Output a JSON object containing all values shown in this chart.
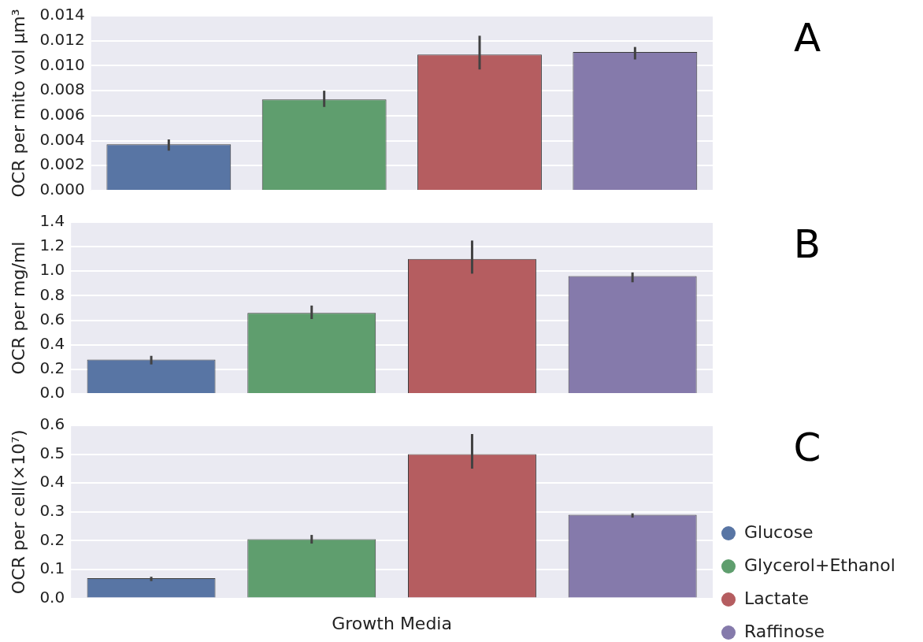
{
  "chart_data": [
    {
      "type": "bar",
      "ylabel": "OCR per mito vol μm³",
      "categories": [
        null,
        null,
        null,
        null
      ],
      "ylim": [
        0,
        0.014
      ],
      "yticks": [
        {
          "value": 0,
          "label": "0.000"
        },
        0.002,
        0.004,
        0.006,
        0.008,
        {
          "value": 0.01,
          "label": "0.010"
        },
        0.012,
        0.014
      ],
      "grid": "y",
      "legend": false,
      "annotations": [
        "A"
      ],
      "series": [
        {
          "color": "#5875a4",
          "values": [
            0.0037,
            null,
            null,
            null
          ],
          "errors": [
            [
              0.0032,
              0.0041
            ],
            null,
            null,
            null
          ]
        },
        {
          "color": "#5f9e6e",
          "values": [
            null,
            0.0073,
            null,
            null
          ],
          "errors": [
            null,
            [
              0.0067,
              0.008
            ],
            null,
            null
          ]
        },
        {
          "color": "#b55d60",
          "values": [
            null,
            null,
            0.0109,
            null
          ],
          "errors": [
            null,
            null,
            [
              0.0097,
              0.0124
            ],
            null
          ]
        },
        {
          "color": "#857aab",
          "values": [
            null,
            null,
            null,
            0.0111
          ],
          "errors": [
            null,
            null,
            null,
            [
              0.0105,
              0.0115
            ]
          ]
        }
      ]
    },
    {
      "type": "bar",
      "ylabel": "OCR per mg/ml",
      "categories": [
        null,
        null,
        null,
        null
      ],
      "ylim": [
        0,
        1.4
      ],
      "yticks": [
        {
          "value": 0,
          "label": "0.0"
        },
        0.2,
        0.4,
        0.6,
        0.8,
        {
          "value": 1,
          "label": "1.0"
        },
        1.2,
        1.4
      ],
      "grid": "y",
      "legend": false,
      "annotations": [
        "B"
      ],
      "series": [
        {
          "color": "#5875a4",
          "values": [
            0.28,
            null,
            null,
            null
          ],
          "errors": [
            [
              0.24,
              0.31
            ],
            null,
            null,
            null
          ]
        },
        {
          "color": "#5f9e6e",
          "values": [
            null,
            0.66,
            null,
            null
          ],
          "errors": [
            null,
            [
              0.61,
              0.72
            ],
            null,
            null
          ]
        },
        {
          "color": "#b55d60",
          "values": [
            null,
            null,
            1.1,
            null
          ],
          "errors": [
            null,
            null,
            [
              0.98,
              1.25
            ],
            null
          ]
        },
        {
          "color": "#857aab",
          "values": [
            null,
            null,
            null,
            0.96
          ],
          "errors": [
            null,
            null,
            null,
            [
              0.91,
              0.99
            ]
          ]
        }
      ]
    },
    {
      "type": "bar",
      "ylabel": "OCR per cell(×10⁷)",
      "xlabel": "Growth Media",
      "categories": [
        null,
        null,
        null,
        null
      ],
      "ylim": [
        0,
        0.6
      ],
      "yticks": [
        {
          "value": 0,
          "label": "0.0"
        },
        0.1,
        0.2,
        0.3,
        0.4,
        0.5,
        0.6
      ],
      "grid": "y",
      "legend": "bottom right",
      "annotations": [
        "C"
      ],
      "series": [
        {
          "name": "Glucose",
          "color": "#5875a4",
          "values": [
            0.07,
            null,
            null,
            null
          ],
          "errors": [
            [
              0.06,
              0.075
            ],
            null,
            null,
            null
          ]
        },
        {
          "name": "Glycerol+Ethanol",
          "color": "#5f9e6e",
          "values": [
            null,
            0.205,
            null,
            null
          ],
          "errors": [
            null,
            [
              0.19,
              0.22
            ],
            null,
            null
          ]
        },
        {
          "name": "Lactate",
          "color": "#b55d60",
          "values": [
            null,
            null,
            0.5,
            null
          ],
          "errors": [
            null,
            null,
            [
              0.45,
              0.57
            ],
            null
          ]
        },
        {
          "name": "Raffinose",
          "color": "#857aab",
          "values": [
            null,
            null,
            null,
            0.29
          ],
          "errors": [
            null,
            null,
            null,
            [
              0.28,
              0.295
            ]
          ]
        }
      ]
    }
  ]
}
